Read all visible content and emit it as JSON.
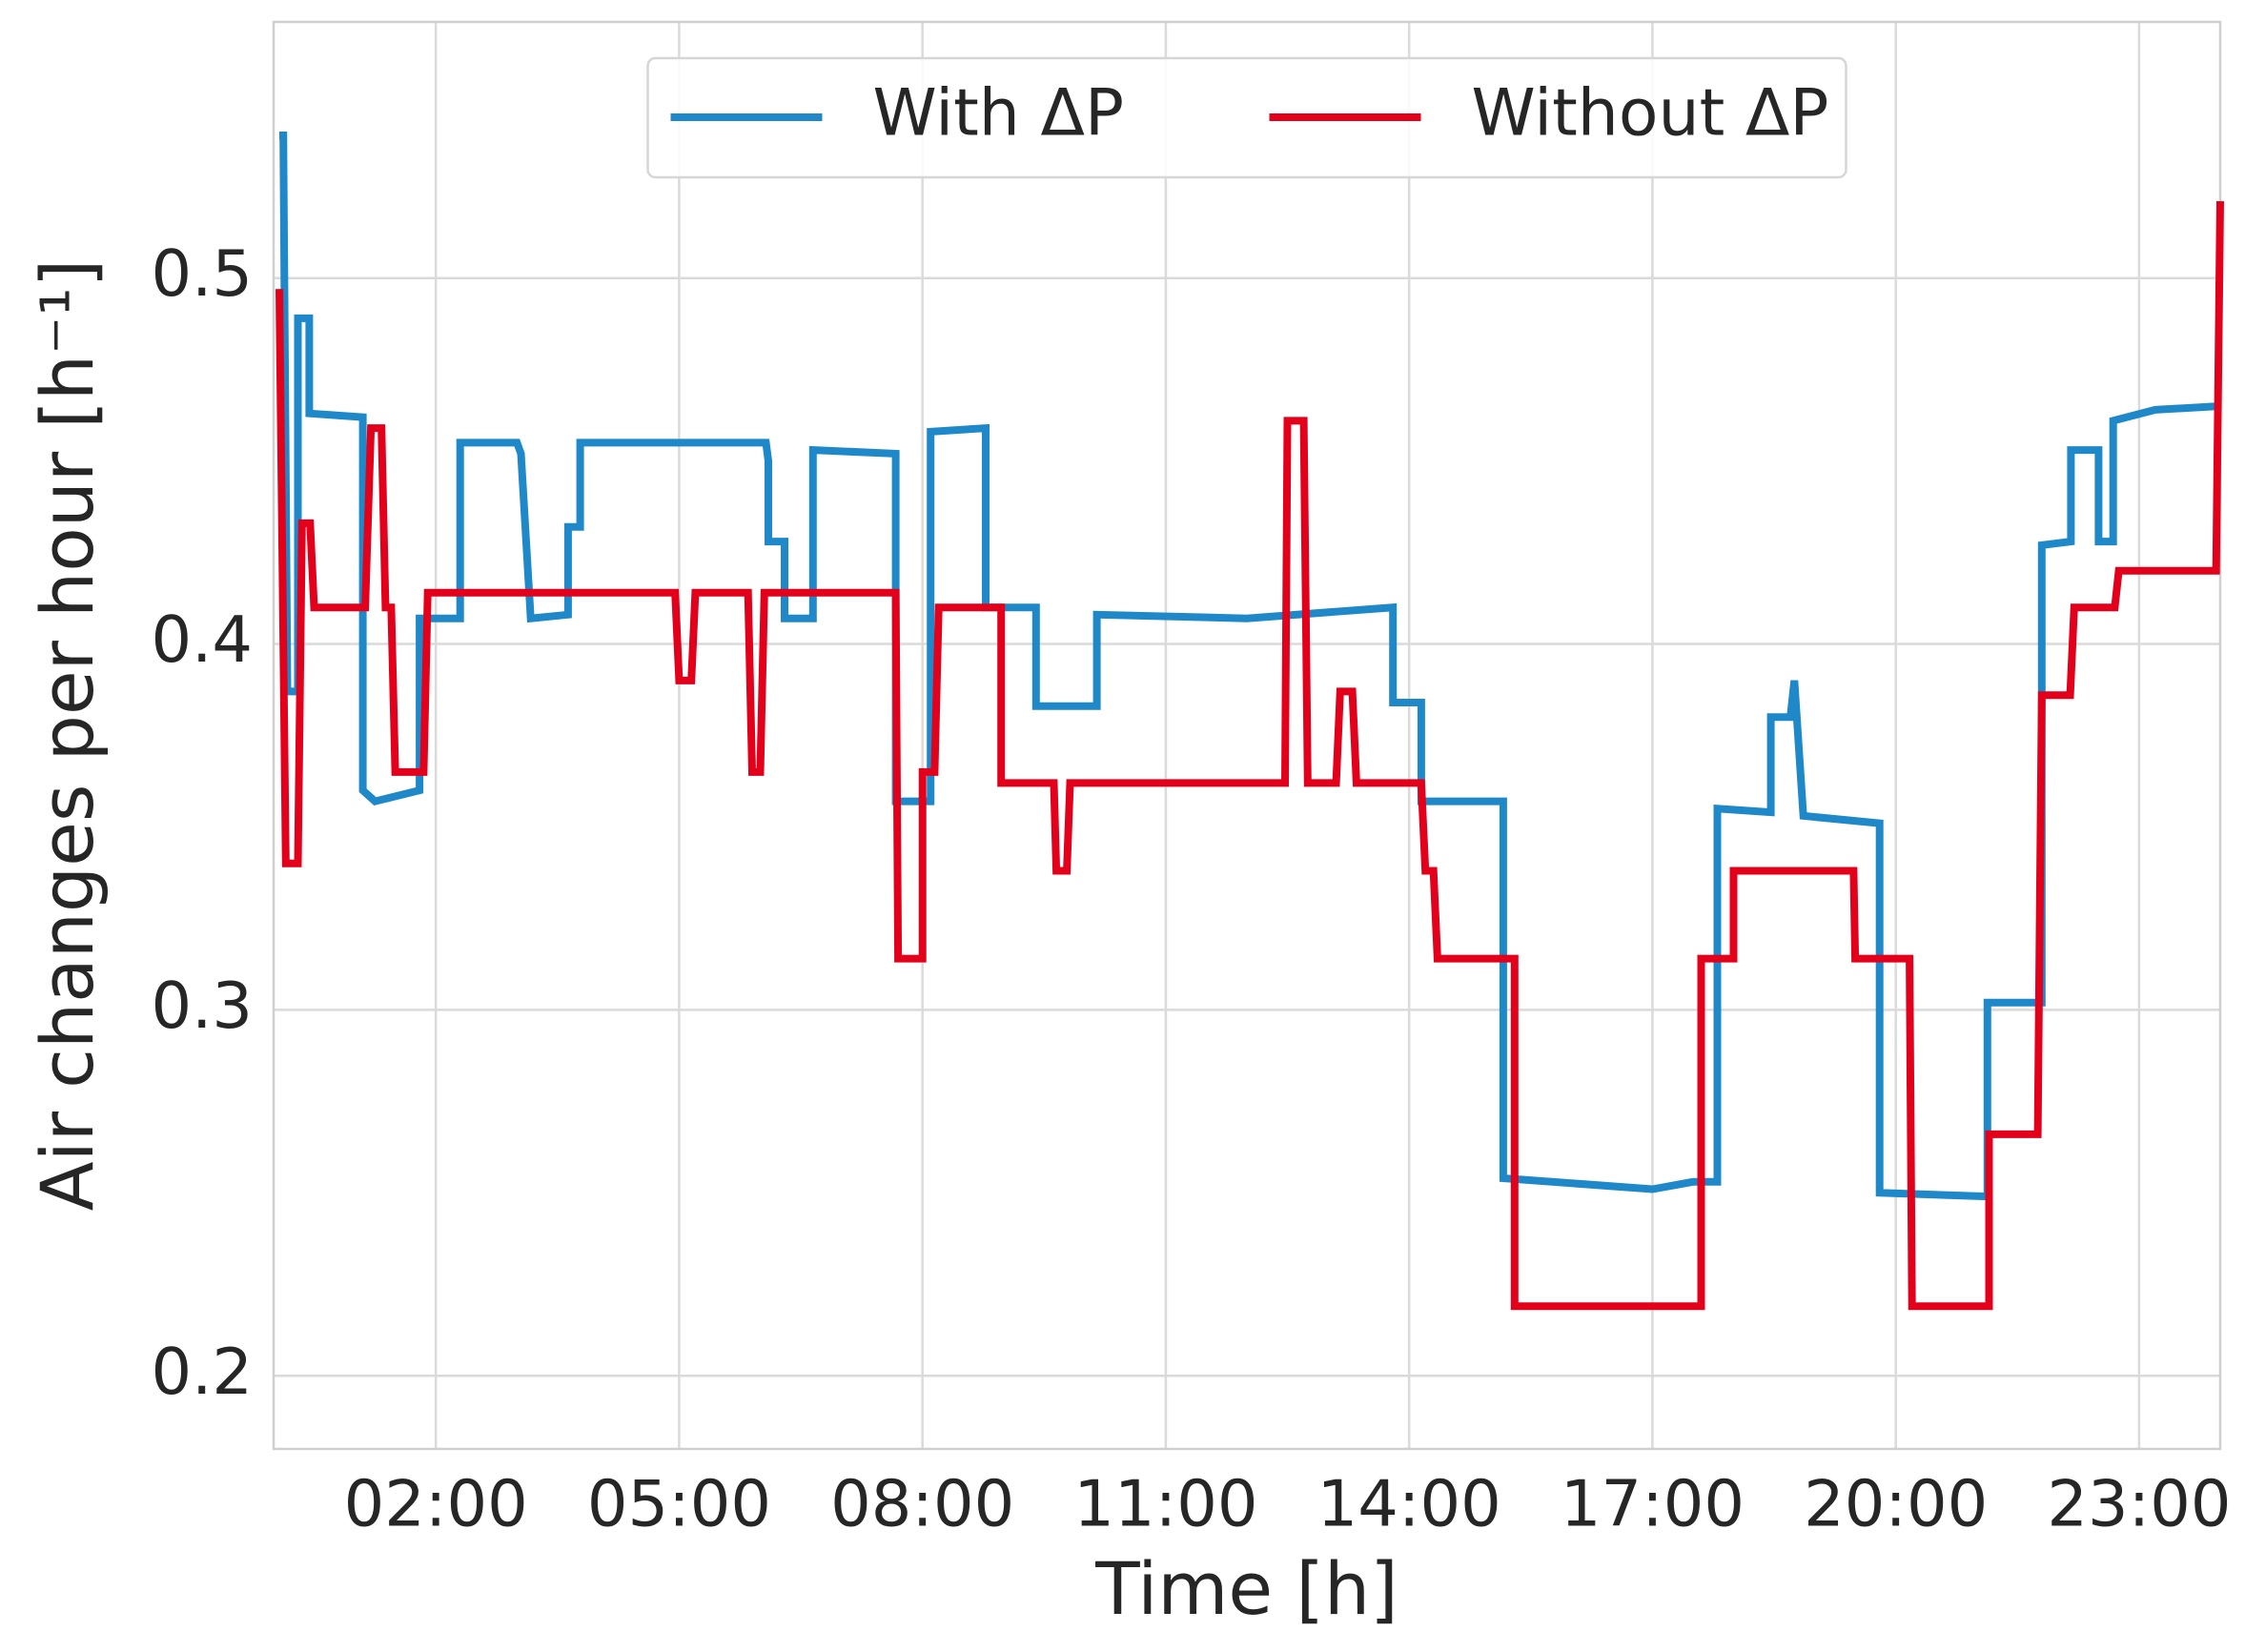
{
  "chart_data": {
    "type": "line",
    "x_label": "Time [h]",
    "y_label": "Air changes per hour [h⁻¹]",
    "xlim": [
      0,
      24
    ],
    "ylim": [
      0.18,
      0.57
    ],
    "xticks": [
      {
        "value": 2,
        "label": "02:00"
      },
      {
        "value": 5,
        "label": "05:00"
      },
      {
        "value": 8,
        "label": "08:00"
      },
      {
        "value": 11,
        "label": "11:00"
      },
      {
        "value": 14,
        "label": "14:00"
      },
      {
        "value": 17,
        "label": "17:00"
      },
      {
        "value": 20,
        "label": "20:00"
      },
      {
        "value": 23,
        "label": "23:00"
      }
    ],
    "yticks": [
      0.2,
      0.3,
      0.4,
      0.5
    ],
    "grid": true,
    "legend": "upper center",
    "series": [
      {
        "name": "With ΔP",
        "color": "#1f88c9",
        "x": [
          0.07,
          0.12,
          0.17,
          0.3,
          0.3,
          0.44,
          0.44,
          1.1,
          1.1,
          1.25,
          1.8,
          1.8,
          2.3,
          2.3,
          3.0,
          3.05,
          3.17,
          3.63,
          3.63,
          3.78,
          3.78,
          6.07,
          6.1,
          6.1,
          6.3,
          6.3,
          6.65,
          6.65,
          7.67,
          7.67,
          8.1,
          8.1,
          8.78,
          8.78,
          9.4,
          9.4,
          10.15,
          10.15,
          12.0,
          13.8,
          13.8,
          14.15,
          14.15,
          15.16,
          15.16,
          17.0,
          17.5,
          17.8,
          17.8,
          18.46,
          18.46,
          18.7,
          18.75,
          18.86,
          19.8,
          19.8,
          21.13,
          21.13,
          21.8,
          21.8,
          22.16,
          22.16,
          22.5,
          22.5,
          22.68,
          22.68,
          23.2,
          24
        ],
        "values": [
          0.539,
          0.539,
          0.387,
          0.387,
          0.489,
          0.489,
          0.463,
          0.462,
          0.36,
          0.357,
          0.36,
          0.407,
          0.407,
          0.455,
          0.455,
          0.452,
          0.407,
          0.408,
          0.432,
          0.432,
          0.455,
          0.455,
          0.45,
          0.428,
          0.428,
          0.407,
          0.407,
          0.453,
          0.452,
          0.357,
          0.357,
          0.458,
          0.459,
          0.41,
          0.41,
          0.383,
          0.383,
          0.408,
          0.407,
          0.41,
          0.384,
          0.384,
          0.357,
          0.357,
          0.254,
          0.251,
          0.253,
          0.253,
          0.355,
          0.354,
          0.38,
          0.38,
          0.39,
          0.353,
          0.351,
          0.25,
          0.249,
          0.302,
          0.302,
          0.427,
          0.428,
          0.453,
          0.453,
          0.428,
          0.428,
          0.461,
          0.464,
          0.465
        ]
      },
      {
        "name": "Without ΔP",
        "color": "#e3001b",
        "x": [
          0.07,
          0.15,
          0.3,
          0.35,
          0.45,
          0.5,
          1.13,
          1.2,
          1.33,
          1.38,
          1.45,
          1.5,
          1.85,
          1.9,
          4.95,
          5.0,
          5.15,
          5.2,
          5.85,
          5.9,
          6.0,
          6.05,
          7.67,
          7.7,
          8.0,
          8.0,
          8.15,
          8.2,
          8.97,
          8.97,
          9.62,
          9.65,
          9.78,
          9.82,
          12.47,
          12.5,
          12.7,
          12.75,
          13.1,
          13.15,
          13.3,
          13.35,
          14.15,
          14.2,
          14.3,
          14.35,
          15.3,
          15.3,
          17.6,
          17.6,
          18.0,
          18.0,
          19.48,
          19.5,
          20.17,
          20.2,
          21.15,
          21.15,
          21.75,
          21.8,
          22.15,
          22.2,
          22.7,
          22.75,
          23.95,
          24
        ],
        "values": [
          0.497,
          0.34,
          0.34,
          0.433,
          0.433,
          0.41,
          0.41,
          0.459,
          0.459,
          0.41,
          0.41,
          0.365,
          0.365,
          0.414,
          0.414,
          0.39,
          0.39,
          0.414,
          0.414,
          0.365,
          0.365,
          0.414,
          0.414,
          0.314,
          0.314,
          0.365,
          0.365,
          0.41,
          0.41,
          0.362,
          0.362,
          0.338,
          0.338,
          0.362,
          0.362,
          0.461,
          0.461,
          0.362,
          0.362,
          0.387,
          0.387,
          0.362,
          0.362,
          0.338,
          0.338,
          0.314,
          0.314,
          0.219,
          0.219,
          0.314,
          0.314,
          0.338,
          0.338,
          0.314,
          0.314,
          0.219,
          0.219,
          0.266,
          0.266,
          0.386,
          0.386,
          0.41,
          0.41,
          0.42,
          0.42,
          0.521
        ]
      }
    ]
  }
}
